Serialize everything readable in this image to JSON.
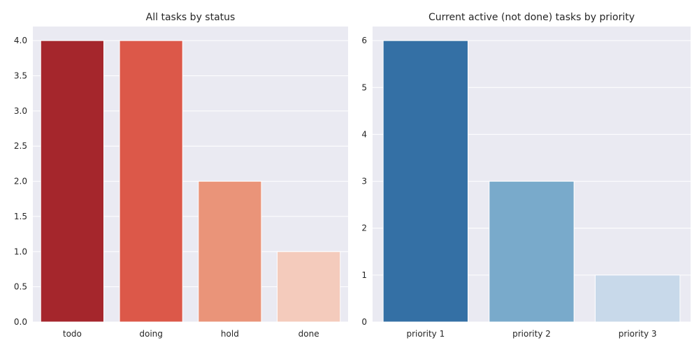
{
  "chart_data": [
    {
      "type": "bar",
      "title": "All tasks by status",
      "xlabel": "",
      "ylabel": "",
      "categories": [
        "todo",
        "doing",
        "hold",
        "done"
      ],
      "values": [
        4,
        4,
        2,
        1
      ],
      "ylim": [
        0,
        4.2
      ],
      "yticks": [
        "0.0",
        "0.5",
        "1.0",
        "1.5",
        "2.0",
        "2.5",
        "3.0",
        "3.5",
        "4.0"
      ],
      "colors": [
        "#a5262c",
        "#dc5849",
        "#ea9479",
        "#f4cbbc"
      ],
      "grid": true
    },
    {
      "type": "bar",
      "title": "Current active (not done) tasks by priority",
      "xlabel": "",
      "ylabel": "",
      "categories": [
        "priority 1",
        "priority 2",
        "priority 3"
      ],
      "values": [
        6,
        3,
        1
      ],
      "ylim": [
        0,
        6.3
      ],
      "yticks": [
        "0",
        "1",
        "2",
        "3",
        "4",
        "5",
        "6"
      ],
      "colors": [
        "#3470a5",
        "#79aacb",
        "#c8d9ea"
      ],
      "grid": true
    }
  ]
}
